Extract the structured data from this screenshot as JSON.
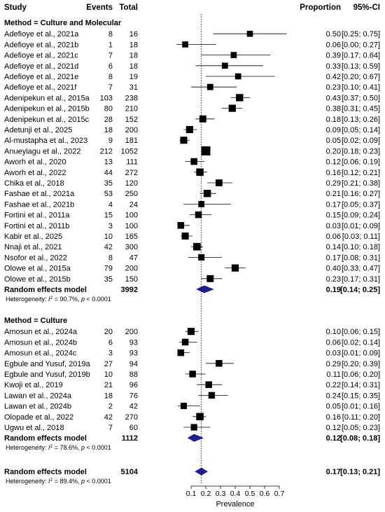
{
  "headers": {
    "study": "Study",
    "events": "Events",
    "total": "Total",
    "proportion": "Proportion",
    "ci": "95%-CI"
  },
  "chart_data": {
    "type": "forest",
    "xlabel": "Prevalence",
    "xlim": [
      0.0,
      0.75
    ],
    "xticks": [
      0.1,
      0.2,
      0.3,
      0.4,
      0.5,
      0.6,
      0.7
    ],
    "xtick_labels": [
      "0.1",
      "0.2",
      "0.3",
      "0.4",
      "0.5",
      "0.6",
      "0.7"
    ],
    "reference_line": 0.17,
    "marker_color": "#000000",
    "pooled_color": "#1f1f8f",
    "groups": [
      {
        "label": "Method = Culture and Molecular",
        "studies": [
          {
            "study": "Adefioye et al., 2021a",
            "events": 8,
            "total": 16,
            "prop": 0.5,
            "lo": 0.25,
            "hi": 0.75,
            "prop_text": "0.50",
            "ci_text": "[0.25; 0.75]"
          },
          {
            "study": "Adefioye et al., 2021b",
            "events": 1,
            "total": 18,
            "prop": 0.06,
            "lo": 0.0,
            "hi": 0.27,
            "prop_text": "0.06",
            "ci_text": "[0.00; 0.27]"
          },
          {
            "study": "Adefioye et al., 2021c",
            "events": 7,
            "total": 18,
            "prop": 0.39,
            "lo": 0.17,
            "hi": 0.64,
            "prop_text": "0.39",
            "ci_text": "[0.17; 0.64]"
          },
          {
            "study": "Adefioye et al., 2021d",
            "events": 6,
            "total": 18,
            "prop": 0.33,
            "lo": 0.13,
            "hi": 0.59,
            "prop_text": "0.33",
            "ci_text": "[0.13; 0.59]"
          },
          {
            "study": "Adefioye et al., 2021e",
            "events": 8,
            "total": 19,
            "prop": 0.42,
            "lo": 0.2,
            "hi": 0.67,
            "prop_text": "0.42",
            "ci_text": "[0.20; 0.67]"
          },
          {
            "study": "Adefioye et al., 2021f",
            "events": 7,
            "total": 31,
            "prop": 0.23,
            "lo": 0.1,
            "hi": 0.41,
            "prop_text": "0.23",
            "ci_text": "[0.10; 0.41]"
          },
          {
            "study": "Adenipekun et al., 2015a",
            "events": 103,
            "total": 238,
            "prop": 0.43,
            "lo": 0.37,
            "hi": 0.5,
            "prop_text": "0.43",
            "ci_text": "[0.37; 0.50]"
          },
          {
            "study": "Adenipekun et al., 2015b",
            "events": 80,
            "total": 210,
            "prop": 0.38,
            "lo": 0.31,
            "hi": 0.45,
            "prop_text": "0.38",
            "ci_text": "[0.31; 0.45]"
          },
          {
            "study": "Adenipekun et al., 2015c",
            "events": 28,
            "total": 152,
            "prop": 0.18,
            "lo": 0.13,
            "hi": 0.26,
            "prop_text": "0.18",
            "ci_text": "[0.13; 0.26]"
          },
          {
            "study": "Adetunji et al., 2025",
            "events": 18,
            "total": 200,
            "prop": 0.09,
            "lo": 0.05,
            "hi": 0.14,
            "prop_text": "0.09",
            "ci_text": "[0.05; 0.14]"
          },
          {
            "study": "Al-mustapha et al., 2023",
            "events": 9,
            "total": 181,
            "prop": 0.05,
            "lo": 0.02,
            "hi": 0.09,
            "prop_text": "0.05",
            "ci_text": "[0.02; 0.09]"
          },
          {
            "study": "Anueyiagu et al., 2022",
            "events": 212,
            "total": 1052,
            "prop": 0.2,
            "lo": 0.18,
            "hi": 0.23,
            "prop_text": "0.20",
            "ci_text": "[0.18; 0.23]"
          },
          {
            "study": "Aworh et al., 2020",
            "events": 13,
            "total": 111,
            "prop": 0.12,
            "lo": 0.06,
            "hi": 0.19,
            "prop_text": "0.12",
            "ci_text": "[0.06; 0.19]"
          },
          {
            "study": "Aworh et al., 2022",
            "events": 44,
            "total": 272,
            "prop": 0.16,
            "lo": 0.12,
            "hi": 0.21,
            "prop_text": "0.16",
            "ci_text": "[0.12; 0.21]"
          },
          {
            "study": "Chika et al., 2018",
            "events": 35,
            "total": 120,
            "prop": 0.29,
            "lo": 0.21,
            "hi": 0.38,
            "prop_text": "0.29",
            "ci_text": "[0.21; 0.38]"
          },
          {
            "study": "Fashae et al., 2021a",
            "events": 53,
            "total": 250,
            "prop": 0.21,
            "lo": 0.16,
            "hi": 0.27,
            "prop_text": "0.21",
            "ci_text": "[0.16; 0.27]"
          },
          {
            "study": "Fashae et al., 2021b",
            "events": 4,
            "total": 24,
            "prop": 0.17,
            "lo": 0.05,
            "hi": 0.37,
            "prop_text": "0.17",
            "ci_text": "[0.05; 0.37]"
          },
          {
            "study": "Fortini et al., 2011a",
            "events": 15,
            "total": 100,
            "prop": 0.15,
            "lo": 0.09,
            "hi": 0.24,
            "prop_text": "0.15",
            "ci_text": "[0.09; 0.24]"
          },
          {
            "study": "Fortini et al., 2011b",
            "events": 3,
            "total": 100,
            "prop": 0.03,
            "lo": 0.01,
            "hi": 0.09,
            "prop_text": "0.03",
            "ci_text": "[0.01; 0.09]"
          },
          {
            "study": "Kabir et al., 2025",
            "events": 10,
            "total": 165,
            "prop": 0.06,
            "lo": 0.03,
            "hi": 0.11,
            "prop_text": "0.06",
            "ci_text": "[0.03; 0.11]"
          },
          {
            "study": "Nnaji et al., 2021",
            "events": 42,
            "total": 300,
            "prop": 0.14,
            "lo": 0.1,
            "hi": 0.18,
            "prop_text": "0.14",
            "ci_text": "[0.10; 0.18]"
          },
          {
            "study": "Nsofor et al., 2022",
            "events": 8,
            "total": 47,
            "prop": 0.17,
            "lo": 0.08,
            "hi": 0.31,
            "prop_text": "0.17",
            "ci_text": "[0.08; 0.31]"
          },
          {
            "study": "Olowe et al., 2015a",
            "events": 79,
            "total": 200,
            "prop": 0.4,
            "lo": 0.33,
            "hi": 0.47,
            "prop_text": "0.40",
            "ci_text": "[0.33; 0.47]"
          },
          {
            "study": "Olowe et al., 2015b",
            "events": 35,
            "total": 150,
            "prop": 0.23,
            "lo": 0.17,
            "hi": 0.31,
            "prop_text": "0.23",
            "ci_text": "[0.17; 0.31]"
          }
        ],
        "pooled": {
          "label": "Random effects model",
          "total": 3992,
          "prop": 0.19,
          "lo": 0.14,
          "hi": 0.25,
          "prop_text": "0.19",
          "ci_text": "[0.14; 0.25]"
        },
        "heterogeneity": {
          "prefix": "Heterogeneity: ",
          "i2": "90.7%",
          "p": "< 0.0001"
        }
      },
      {
        "label": "Method = Culture",
        "studies": [
          {
            "study": "Amosun et al., 2024a",
            "events": 20,
            "total": 200,
            "prop": 0.1,
            "lo": 0.06,
            "hi": 0.15,
            "prop_text": "0.10",
            "ci_text": "[0.06; 0.15]"
          },
          {
            "study": "Amosun et al., 2024b",
            "events": 6,
            "total": 93,
            "prop": 0.06,
            "lo": 0.02,
            "hi": 0.14,
            "prop_text": "0.06",
            "ci_text": "[0.02; 0.14]"
          },
          {
            "study": "Amosun et al., 2024c",
            "events": 3,
            "total": 93,
            "prop": 0.03,
            "lo": 0.01,
            "hi": 0.09,
            "prop_text": "0.03",
            "ci_text": "[0.01; 0.09]"
          },
          {
            "study": "Egbule and Yusuf, 2019a",
            "events": 27,
            "total": 94,
            "prop": 0.29,
            "lo": 0.2,
            "hi": 0.39,
            "prop_text": "0.29",
            "ci_text": "[0.20; 0.39]"
          },
          {
            "study": "Egbule and Yusuf, 2019b",
            "events": 10,
            "total": 88,
            "prop": 0.11,
            "lo": 0.06,
            "hi": 0.2,
            "prop_text": "0.11",
            "ci_text": "[0.06; 0.20]"
          },
          {
            "study": "Kwoji et al., 2019",
            "events": 21,
            "total": 96,
            "prop": 0.22,
            "lo": 0.14,
            "hi": 0.31,
            "prop_text": "0.22",
            "ci_text": "[0.14; 0.31]"
          },
          {
            "study": "Lawan et al., 2024a",
            "events": 18,
            "total": 76,
            "prop": 0.24,
            "lo": 0.15,
            "hi": 0.35,
            "prop_text": "0.24",
            "ci_text": "[0.15; 0.35]"
          },
          {
            "study": "Lawan et al., 2024b",
            "events": 2,
            "total": 42,
            "prop": 0.05,
            "lo": 0.01,
            "hi": 0.16,
            "prop_text": "0.05",
            "ci_text": "[0.01; 0.16]"
          },
          {
            "study": "Olopade et al., 2022",
            "events": 42,
            "total": 270,
            "prop": 0.16,
            "lo": 0.11,
            "hi": 0.2,
            "prop_text": "0.16",
            "ci_text": "[0.11; 0.20]"
          },
          {
            "study": "Ugwu et al., 2018",
            "events": 7,
            "total": 60,
            "prop": 0.12,
            "lo": 0.05,
            "hi": 0.23,
            "prop_text": "0.12",
            "ci_text": "[0.05; 0.23]"
          }
        ],
        "pooled": {
          "label": "Random effects model",
          "total": 1112,
          "prop": 0.12,
          "lo": 0.08,
          "hi": 0.18,
          "prop_text": "0.12",
          "ci_text": "[0.08; 0.18]"
        },
        "heterogeneity": {
          "prefix": "Heterogeneity: ",
          "i2": "78.6%",
          "p": "< 0.0001"
        }
      }
    ],
    "overall": {
      "label": "Random effects model",
      "total": 5104,
      "prop": 0.17,
      "lo": 0.13,
      "hi": 0.21,
      "prop_text": "0.17",
      "ci_text": "[0.13; 0.21]",
      "heterogeneity": {
        "prefix": "Heterogeneity: ",
        "i2": "89.4%",
        "p": "< 0.0001"
      }
    }
  }
}
